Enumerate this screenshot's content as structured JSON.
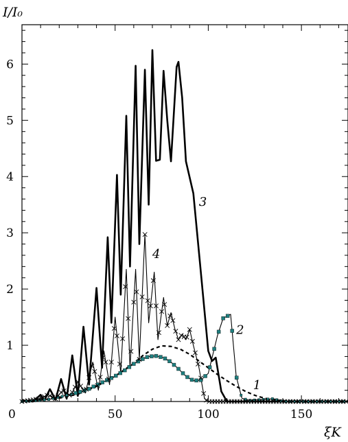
{
  "chart_data": {
    "type": "line",
    "xlabel": "ξK",
    "ylabel": "I/I₀",
    "xlim": [
      0,
      175
    ],
    "ylim": [
      0,
      6.7
    ],
    "grid": false,
    "x_ticks": [
      0,
      50,
      100,
      150
    ],
    "y_ticks": [
      1,
      2,
      3,
      4,
      5,
      6
    ],
    "colors": {
      "axis": "#000000",
      "marker_fill": "#1f7f7f"
    },
    "series": [
      {
        "name": "1",
        "style": "dashed",
        "points": [
          [
            0,
            0.01
          ],
          [
            10,
            0.03
          ],
          [
            20,
            0.06
          ],
          [
            30,
            0.13
          ],
          [
            40,
            0.27
          ],
          [
            50,
            0.45
          ],
          [
            60,
            0.68
          ],
          [
            65,
            0.82
          ],
          [
            70,
            0.93
          ],
          [
            75,
            0.99
          ],
          [
            80,
            0.98
          ],
          [
            85,
            0.93
          ],
          [
            90,
            0.84
          ],
          [
            95,
            0.72
          ],
          [
            100,
            0.6
          ],
          [
            105,
            0.48
          ],
          [
            110,
            0.37
          ],
          [
            115,
            0.27
          ],
          [
            120,
            0.18
          ],
          [
            125,
            0.11
          ],
          [
            130,
            0.06
          ],
          [
            135,
            0.03
          ],
          [
            140,
            0.01
          ],
          [
            150,
            0.0
          ],
          [
            175,
            0.0
          ]
        ]
      },
      {
        "name": "2",
        "style": "thin-line-square-markers",
        "points": [
          [
            0,
            0.0
          ],
          [
            10,
            0.02
          ],
          [
            15,
            0.04
          ],
          [
            20,
            0.08
          ],
          [
            25,
            0.12
          ],
          [
            30,
            0.16
          ],
          [
            35,
            0.21
          ],
          [
            40,
            0.29
          ],
          [
            45,
            0.37
          ],
          [
            50,
            0.45
          ],
          [
            55,
            0.55
          ],
          [
            60,
            0.67
          ],
          [
            65,
            0.76
          ],
          [
            68,
            0.8
          ],
          [
            72,
            0.81
          ],
          [
            76,
            0.78
          ],
          [
            80,
            0.7
          ],
          [
            84,
            0.58
          ],
          [
            88,
            0.45
          ],
          [
            92,
            0.37
          ],
          [
            96,
            0.38
          ],
          [
            100,
            0.5
          ],
          [
            105,
            1.18
          ],
          [
            108,
            1.48
          ],
          [
            112,
            1.55
          ],
          [
            115,
            0.45
          ],
          [
            118,
            0.06
          ],
          [
            122,
            0.02
          ],
          [
            135,
            0.05
          ],
          [
            140,
            0.0
          ],
          [
            175,
            0.0
          ]
        ]
      },
      {
        "name": "3",
        "style": "thick",
        "points": [
          [
            0,
            0.02
          ],
          [
            6,
            0.0
          ],
          [
            10,
            0.12
          ],
          [
            12,
            0.02
          ],
          [
            15,
            0.22
          ],
          [
            18,
            0.03
          ],
          [
            21,
            0.4
          ],
          [
            24,
            0.05
          ],
          [
            27,
            0.82
          ],
          [
            30,
            0.1
          ],
          [
            33,
            1.33
          ],
          [
            36,
            0.3
          ],
          [
            40,
            2.02
          ],
          [
            43,
            0.6
          ],
          [
            46,
            2.92
          ],
          [
            48,
            1.4
          ],
          [
            51,
            4.03
          ],
          [
            53,
            1.9
          ],
          [
            56,
            5.08
          ],
          [
            58,
            2.4
          ],
          [
            61,
            5.97
          ],
          [
            63,
            2.8
          ],
          [
            66,
            5.9
          ],
          [
            68,
            3.5
          ],
          [
            70,
            6.25
          ],
          [
            72,
            4.28
          ],
          [
            74,
            4.3
          ],
          [
            76,
            5.88
          ],
          [
            78,
            5.0
          ],
          [
            80,
            4.27
          ],
          [
            83,
            5.95
          ],
          [
            84,
            6.04
          ],
          [
            86,
            5.4
          ],
          [
            88,
            4.27
          ],
          [
            92,
            3.7
          ],
          [
            96,
            2.3
          ],
          [
            100,
            0.9
          ],
          [
            102,
            0.72
          ],
          [
            104,
            0.78
          ],
          [
            107,
            0.18
          ],
          [
            110,
            0.0
          ],
          [
            175,
            0.0
          ]
        ]
      },
      {
        "name": "4",
        "style": "thin-line-x-markers",
        "points": [
          [
            0,
            0.0
          ],
          [
            10,
            0.05
          ],
          [
            14,
            0.12
          ],
          [
            18,
            0.05
          ],
          [
            22,
            0.2
          ],
          [
            26,
            0.1
          ],
          [
            30,
            0.35
          ],
          [
            34,
            0.15
          ],
          [
            38,
            0.7
          ],
          [
            41,
            0.2
          ],
          [
            44,
            0.9
          ],
          [
            47,
            0.3
          ],
          [
            50,
            1.5
          ],
          [
            53,
            0.5
          ],
          [
            56,
            2.35
          ],
          [
            58,
            0.6
          ],
          [
            61,
            2.35
          ],
          [
            63,
            0.75
          ],
          [
            66,
            2.97
          ],
          [
            68,
            1.4
          ],
          [
            71,
            2.3
          ],
          [
            73,
            1.1
          ],
          [
            76,
            1.85
          ],
          [
            78,
            1.35
          ],
          [
            80,
            1.58
          ],
          [
            82,
            1.3
          ],
          [
            84,
            1.1
          ],
          [
            86,
            1.2
          ],
          [
            88,
            1.1
          ],
          [
            90,
            1.28
          ],
          [
            92,
            1.0
          ],
          [
            95,
            0.6
          ],
          [
            98,
            0.05
          ],
          [
            100,
            0.0
          ],
          [
            175,
            0.0
          ]
        ]
      }
    ],
    "curve_labels": [
      {
        "text": "1",
        "x": 124,
        "y": 0.22
      },
      {
        "text": "2",
        "x": 115,
        "y": 1.2
      },
      {
        "text": "3",
        "x": 95,
        "y": 3.48
      },
      {
        "text": "4",
        "x": 70,
        "y": 2.55
      }
    ]
  }
}
